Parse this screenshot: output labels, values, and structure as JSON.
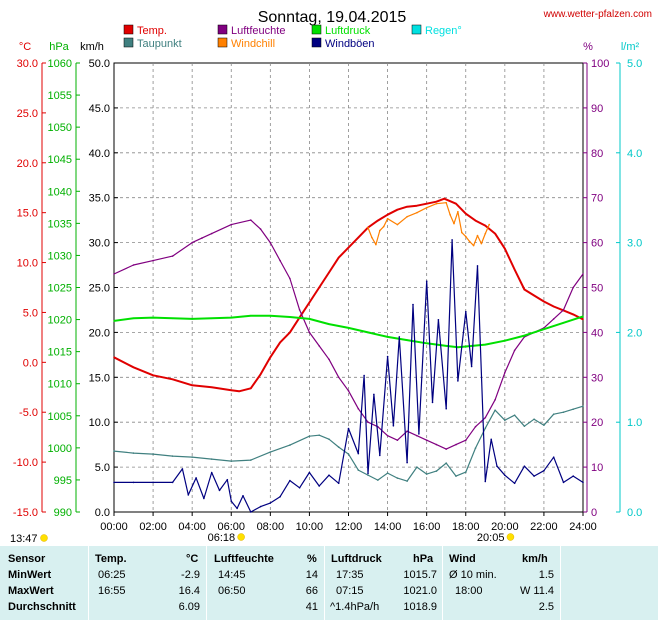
{
  "header": {
    "title": "Sonntag, 19.04.2015",
    "site": "www.wetter-pfalzen.com"
  },
  "legend": [
    {
      "label": "Temp.",
      "color": "#e00000"
    },
    {
      "label": "Luftfeuchte",
      "color": "#800080"
    },
    {
      "label": "Luftdruck",
      "color": "#00e000"
    },
    {
      "label": "Regen°",
      "color": "#00e0e0"
    },
    {
      "label": "Taupunkt",
      "color": "#408080"
    },
    {
      "label": "Windchill",
      "color": "#ff8000"
    },
    {
      "label": "Windböen",
      "color": "#000080"
    }
  ],
  "axes": {
    "temp": {
      "unit": "°C",
      "color": "#e00000",
      "ticks": [
        "30.0",
        "25.0",
        "20.0",
        "15.0",
        "10.0",
        "5.0",
        "0.0",
        "-5.0",
        "-10.0",
        "-15.0"
      ]
    },
    "pressure": {
      "unit": "hPa",
      "color": "#00b000",
      "ticks": [
        "1060",
        "1055",
        "1050",
        "1045",
        "1040",
        "1035",
        "1030",
        "1025",
        "1020",
        "1015",
        "1010",
        "1005",
        "1000",
        "995",
        "990"
      ]
    },
    "wind": {
      "unit": "km/h",
      "color": "#000000",
      "ticks": [
        "50.0",
        "45.0",
        "40.0",
        "35.0",
        "30.0",
        "25.0",
        "20.0",
        "15.0",
        "10.0",
        "5.0",
        "0.0"
      ]
    },
    "humidity": {
      "unit": "%",
      "color": "#800080",
      "ticks": [
        "100",
        "90",
        "80",
        "70",
        "60",
        "50",
        "40",
        "30",
        "20",
        "10",
        "0"
      ]
    },
    "rain": {
      "unit": "l/m²",
      "color": "#00c8c8",
      "ticks": [
        "5.0",
        "4.0",
        "3.0",
        "2.0",
        "1.0",
        "0.0"
      ]
    },
    "x_ticks": [
      "00:00",
      "02:00",
      "04:00",
      "06:00",
      "08:00",
      "10:00",
      "12:00",
      "14:00",
      "16:00",
      "18:00",
      "20:00",
      "22:00",
      "24:00"
    ]
  },
  "sun": {
    "sunrise": "06:18",
    "sunset": "20:05",
    "daylength": "13:47"
  },
  "chart_data": {
    "type": "line",
    "x_unit": "hour",
    "xlim": [
      0,
      24
    ],
    "series": [
      {
        "name": "Temp.",
        "axis": "temp",
        "color": "#e00000",
        "ylim": [
          -15,
          30
        ],
        "x": [
          0,
          1,
          2,
          3,
          4,
          5,
          6,
          6.4,
          7,
          7.5,
          8,
          8.5,
          9,
          9.5,
          10,
          10.5,
          11,
          11.5,
          12,
          12.5,
          13,
          13.5,
          14,
          14.5,
          15,
          15.5,
          16,
          16.5,
          16.9,
          17.5,
          18,
          18.5,
          19,
          19.5,
          20,
          20.5,
          21,
          21.5,
          22,
          22.5,
          23,
          23.5,
          24
        ],
        "y": [
          0.5,
          -0.5,
          -1.3,
          -1.7,
          -2.3,
          -2.5,
          -2.8,
          -2.9,
          -2.6,
          -1.2,
          0.5,
          2,
          3,
          4.5,
          6,
          7.5,
          9,
          10.5,
          11.5,
          12.5,
          13.5,
          14.2,
          14.8,
          15.3,
          15.6,
          15.7,
          15.9,
          16.1,
          16.4,
          15.9,
          14.9,
          14.2,
          13.7,
          12.9,
          11.4,
          9.3,
          7.3,
          6.7,
          6.1,
          5.6,
          5.2,
          4.8,
          4.3
        ]
      },
      {
        "name": "Windchill",
        "axis": "temp",
        "color": "#ff8000",
        "ylim": [
          -15,
          30
        ],
        "x": [
          13,
          13.2,
          13.4,
          13.6,
          13.8,
          14,
          14.5,
          15,
          15.5,
          16,
          16.5,
          17,
          17.2,
          17.4,
          17.6,
          17.8,
          18,
          18.2,
          18.4,
          18.6,
          18.8,
          19,
          19.2
        ],
        "y": [
          13.5,
          12.5,
          11.8,
          13.2,
          13.6,
          14.4,
          13.8,
          14.6,
          15.0,
          15.5,
          15.9,
          16.0,
          14.8,
          13.9,
          15.1,
          13.0,
          12.6,
          12.1,
          11.7,
          12.7,
          11.9,
          12.9,
          13.8
        ]
      },
      {
        "name": "Taupunkt",
        "axis": "temp",
        "color": "#408080",
        "ylim": [
          -15,
          30
        ],
        "x": [
          0,
          1,
          2,
          3,
          4,
          5,
          6,
          7,
          8,
          9,
          10,
          10.5,
          11,
          11.5,
          12,
          12.5,
          13,
          13.5,
          14,
          14.5,
          15,
          15.5,
          16,
          16.5,
          17,
          17.5,
          18,
          18.5,
          19,
          19.5,
          20,
          20.5,
          21,
          21.5,
          22,
          22.5,
          23,
          23.5,
          24
        ],
        "y": [
          -8.9,
          -9.1,
          -9.2,
          -9.4,
          -9.5,
          -9.7,
          -9.9,
          -9.8,
          -9.0,
          -8.3,
          -7.4,
          -7.3,
          -7.7,
          -8.5,
          -9.2,
          -10.8,
          -11.3,
          -11.8,
          -11.1,
          -11.6,
          -11.9,
          -10.5,
          -11.2,
          -10.9,
          -10.1,
          -11.4,
          -11.0,
          -8.6,
          -6.6,
          -4.8,
          -5.8,
          -5.3,
          -6.4,
          -5.7,
          -6.3,
          -5.2,
          -5.0,
          -4.7,
          -4.4
        ]
      },
      {
        "name": "Luftfeuchte",
        "axis": "humidity",
        "color": "#800080",
        "ylim": [
          0,
          100
        ],
        "x": [
          0,
          1,
          2,
          3,
          4,
          4.5,
          5,
          6,
          7,
          7.5,
          8,
          8.5,
          9,
          9.5,
          10,
          10.5,
          11,
          11.5,
          12,
          12.5,
          13,
          13.5,
          14,
          14.5,
          15,
          15.5,
          16,
          16.5,
          17,
          17.5,
          18,
          18.5,
          19,
          19.5,
          20,
          20.5,
          21,
          21.5,
          22,
          22.5,
          23,
          23.5,
          24
        ],
        "y": [
          53,
          55,
          56,
          57,
          60,
          61,
          62,
          64,
          65,
          63,
          60,
          56,
          52,
          45,
          40,
          37,
          34,
          30,
          27,
          23,
          20,
          19,
          17,
          16,
          18,
          17,
          16,
          15,
          14,
          15,
          16,
          19,
          21,
          25,
          31,
          36,
          39,
          40,
          41,
          43,
          45,
          50,
          53
        ]
      },
      {
        "name": "Luftdruck",
        "axis": "pressure",
        "color": "#00e000",
        "ylim": [
          990,
          1060
        ],
        "x": [
          0,
          1,
          2,
          3,
          4,
          5,
          6,
          7,
          8,
          9,
          10,
          11,
          12,
          13,
          14,
          15,
          16,
          17,
          17.6,
          18,
          19,
          20,
          21,
          22,
          23,
          24
        ],
        "y": [
          1019.8,
          1020.2,
          1020.3,
          1020.2,
          1020.1,
          1020.2,
          1020.3,
          1020.6,
          1020.6,
          1020.4,
          1020.1,
          1019.3,
          1018.7,
          1018.0,
          1017.3,
          1016.8,
          1016.3,
          1015.9,
          1015.7,
          1015.8,
          1016.1,
          1016.7,
          1017.5,
          1018.5,
          1019.5,
          1020.5
        ]
      },
      {
        "name": "Windböen",
        "axis": "wind",
        "color": "#000080",
        "ylim": [
          0,
          50
        ],
        "x": [
          0,
          1,
          2,
          3,
          3.5,
          3.8,
          4.2,
          4.6,
          5,
          5.4,
          5.8,
          6,
          6.3,
          6.6,
          7,
          7.5,
          8,
          8.5,
          9,
          9.5,
          10,
          10.5,
          11,
          11.5,
          12,
          12.5,
          12.8,
          13,
          13.3,
          13.6,
          14,
          14.3,
          14.6,
          15,
          15.3,
          15.6,
          16,
          16.3,
          16.6,
          17,
          17.3,
          17.6,
          18,
          18.3,
          18.6,
          19,
          19.3,
          19.6,
          20,
          20.5,
          21,
          21.5,
          22,
          22.5,
          23,
          23.5,
          24
        ],
        "y": [
          3.3,
          3.3,
          3.3,
          3.3,
          4.8,
          1.9,
          3.8,
          1.5,
          4.4,
          2.4,
          3.6,
          1.2,
          0.4,
          1.8,
          0,
          0.6,
          1,
          1.7,
          3.5,
          2.7,
          4.4,
          2.9,
          4.1,
          3.2,
          9.3,
          6.5,
          15.2,
          4.3,
          13.1,
          6.3,
          17.3,
          9.6,
          19.5,
          5.5,
          23.1,
          8.7,
          25.7,
          12.2,
          21.4,
          11.5,
          30.3,
          14.6,
          22.3,
          16.2,
          27.4,
          3.4,
          8.1,
          5.1,
          4.1,
          3.2,
          5.1,
          4.0,
          4.6,
          6.1,
          3.3,
          4.0,
          3.3
        ]
      }
    ]
  },
  "stats": {
    "headers": {
      "sensor": "Sensor",
      "temp": "Temp.",
      "temp_unit": "°C",
      "hum": "Luftfeuchte",
      "hum_unit": "%",
      "press": "Luftdruck",
      "press_unit": "hPa",
      "wind": "Wind",
      "wind_unit": "km/h"
    },
    "rows": [
      {
        "label": "MinWert",
        "temp_time": "06:25",
        "temp_val": "-2.9",
        "hum_time": "14:45",
        "hum_val": "14",
        "press_time": "17:35",
        "press_val": "1015.7",
        "wind_label": "Ø 10 min.",
        "wind_val": "1.5"
      },
      {
        "label": "MaxWert",
        "temp_time": "16:55",
        "temp_val": "16.4",
        "hum_time": "06:50",
        "hum_val": "66",
        "press_time": "07:15",
        "press_val": "1021.0",
        "wind_label": "18:00",
        "wind_val": "W 11.4"
      },
      {
        "label": "Durchschnitt",
        "temp_time": "",
        "temp_val": "6.09",
        "hum_time": "",
        "hum_val": "41",
        "press_time": "^1.4hPa/h",
        "press_val": "1018.9",
        "wind_label": "",
        "wind_val": "2.5"
      }
    ]
  }
}
